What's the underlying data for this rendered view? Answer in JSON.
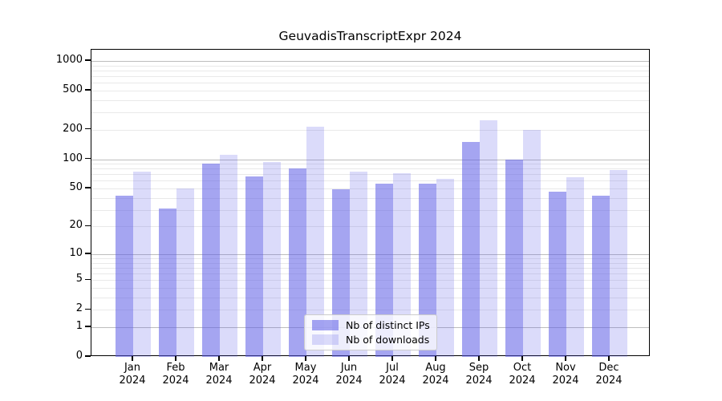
{
  "chart_data": {
    "type": "bar",
    "title": "GeuvadisTranscriptExpr 2024",
    "year_label": "2024",
    "categories": [
      "Jan",
      "Feb",
      "Mar",
      "Apr",
      "May",
      "Jun",
      "Jul",
      "Aug",
      "Sep",
      "Oct",
      "Nov",
      "Dec"
    ],
    "series": [
      {
        "name": "Nb of distinct IPs",
        "color": "rgba(91,91,230,0.55)",
        "values": [
          42,
          31,
          90,
          67,
          80,
          49,
          56,
          56,
          150,
          100,
          46,
          42
        ]
      },
      {
        "name": "Nb of downloads",
        "color": "rgba(91,91,230,0.22)",
        "values": [
          75,
          50,
          112,
          93,
          215,
          75,
          72,
          63,
          250,
          200,
          65,
          77
        ]
      }
    ],
    "scale": "log1p",
    "y_ticks": [
      0,
      1,
      2,
      5,
      10,
      20,
      50,
      100,
      200,
      500,
      1000
    ],
    "ylim": [
      0,
      1300
    ],
    "grid": {
      "major_at": [
        1,
        10,
        100,
        1000
      ],
      "major_color": "#bdbdbd",
      "minor_color": "#e9e9e9"
    },
    "legend_position": "lower-center",
    "axis_color": "#000000",
    "background": "#ffffff"
  }
}
